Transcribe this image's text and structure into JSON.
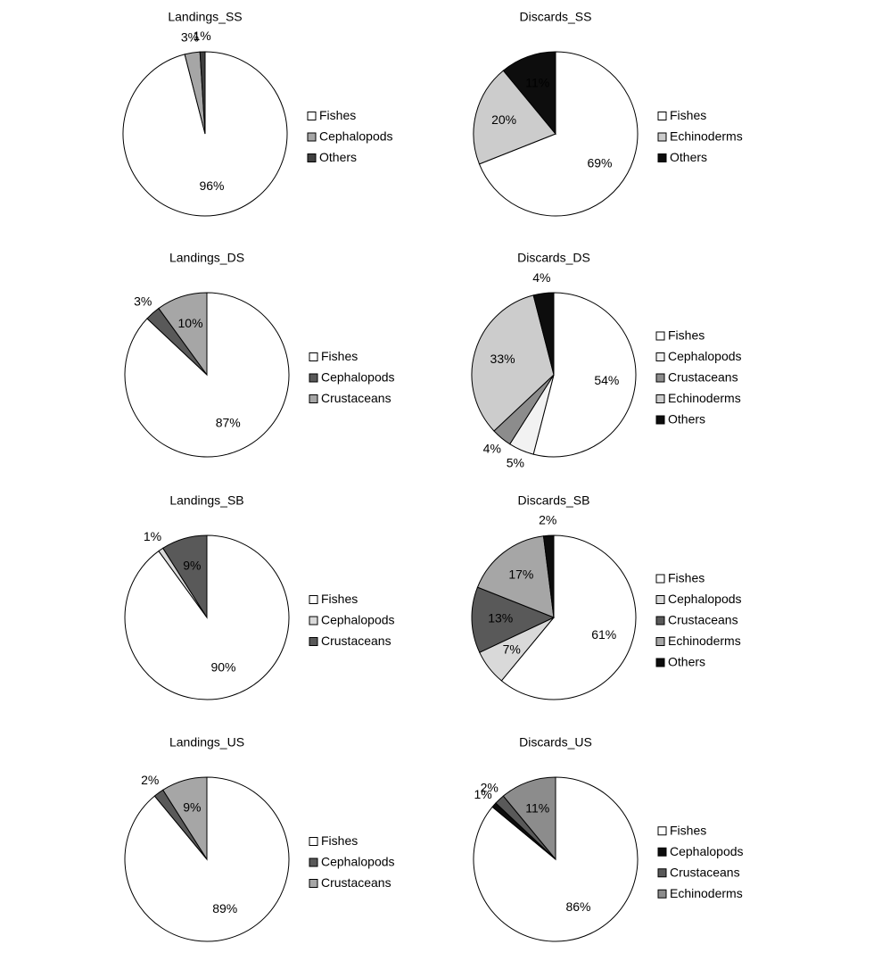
{
  "chart_data": [
    {
      "type": "pie",
      "title": "Landings_SS",
      "categories": [
        "Fishes",
        "Cephalopods",
        "Others"
      ],
      "values": [
        96,
        3,
        1
      ],
      "value_labels": [
        "96%",
        "3%",
        "1%"
      ],
      "colors": [
        "#ffffff",
        "#a6a6a6",
        "#404040"
      ]
    },
    {
      "type": "pie",
      "title": "Discards_SS",
      "categories": [
        "Fishes",
        "Echinoderms",
        "Others"
      ],
      "values": [
        69,
        20,
        11
      ],
      "value_labels": [
        "69%",
        "20%",
        "11%"
      ],
      "colors": [
        "#ffffff",
        "#cccccc",
        "#0d0d0d"
      ]
    },
    {
      "type": "pie",
      "title": "Landings_DS",
      "categories": [
        "Fishes",
        "Cephalopods",
        "Crustaceans"
      ],
      "values": [
        87,
        3,
        10
      ],
      "value_labels": [
        "87%",
        "3%",
        "10%"
      ],
      "colors": [
        "#ffffff",
        "#595959",
        "#a6a6a6"
      ]
    },
    {
      "type": "pie",
      "title": "Discards_DS",
      "categories": [
        "Fishes",
        "Cephalopods",
        "Crustaceans",
        "Echinoderms",
        "Others"
      ],
      "values": [
        54,
        5,
        4,
        33,
        4
      ],
      "value_labels": [
        "54%",
        "5%",
        "4%",
        "33%",
        "4%"
      ],
      "colors": [
        "#ffffff",
        "#f2f2f2",
        "#8c8c8c",
        "#cccccc",
        "#0d0d0d"
      ]
    },
    {
      "type": "pie",
      "title": "Landings_SB",
      "categories": [
        "Fishes",
        "Cephalopods",
        "Crustaceans"
      ],
      "values": [
        90,
        1,
        9
      ],
      "value_labels": [
        "90%",
        "1%",
        "9%"
      ],
      "colors": [
        "#ffffff",
        "#d9d9d9",
        "#595959"
      ]
    },
    {
      "type": "pie",
      "title": "Discards_SB",
      "categories": [
        "Fishes",
        "Cephalopods",
        "Crustaceans",
        "Echinoderms",
        "Others"
      ],
      "values": [
        61,
        7,
        13,
        17,
        2
      ],
      "value_labels": [
        "61%",
        "7%",
        "13%",
        "17%",
        "2%"
      ],
      "colors": [
        "#ffffff",
        "#d9d9d9",
        "#595959",
        "#a6a6a6",
        "#0d0d0d"
      ]
    },
    {
      "type": "pie",
      "title": "Landings_US",
      "categories": [
        "Fishes",
        "Cephalopods",
        "Crustaceans"
      ],
      "values": [
        89,
        2,
        9
      ],
      "value_labels": [
        "89%",
        "2%",
        "9%"
      ],
      "colors": [
        "#ffffff",
        "#595959",
        "#a6a6a6"
      ]
    },
    {
      "type": "pie",
      "title": "Discards_US",
      "categories": [
        "Fishes",
        "Cephalopods",
        "Crustaceans",
        "Echinoderms"
      ],
      "values": [
        86,
        1,
        2,
        11
      ],
      "value_labels": [
        "86%",
        "1%",
        "2%",
        "11%"
      ],
      "colors": [
        "#ffffff",
        "#0d0d0d",
        "#595959",
        "#8c8c8c"
      ]
    }
  ]
}
